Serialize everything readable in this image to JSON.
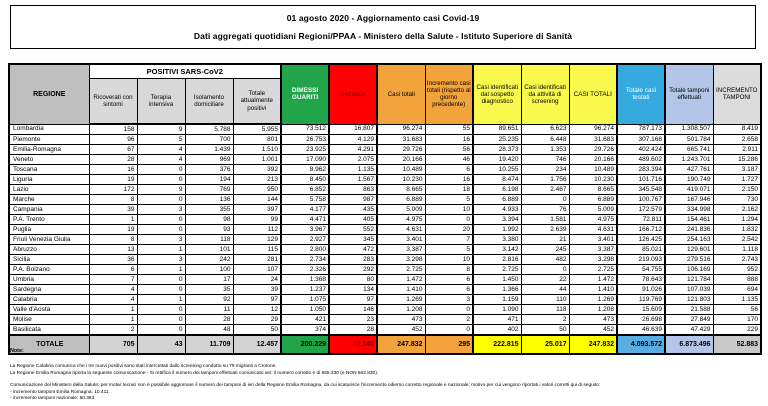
{
  "title": {
    "line1": "01 agosto 2020 - Aggiornamento casi Covid-19",
    "line2": "Dati aggregati quotidiani Regioni/PPAA - Ministero della Salute - Istituto Superiore di Sanità"
  },
  "table": {
    "group_header": "POSITIVI SARS-CoV2",
    "headers": {
      "regione": "REGIONE",
      "ricoverati": "Ricoverati con sintomi",
      "terapia": "Terapia intensiva",
      "isolamento": "Isolamento domiciliare",
      "tot_positivi": "Totale attualmente positivi",
      "dimessi": "DIMESSI GUARITI",
      "deceduti": "Deceduti",
      "casi_totali": "Casi totali",
      "incremento_casi": "Incremento casi totali (rispetto al giorno precedente)",
      "sospetto": "Casi identificati dal sospetto diagnostico",
      "screening": "Casi identificati da attività di screening",
      "casi_totali_caps": "CASI TOTALI",
      "casi_testati": "Totale casi testati",
      "tamponi": "Totale tamponi effettuati",
      "incremento_tamponi": "INCREMENTO TAMPONI"
    },
    "rows": [
      [
        "Lombardia",
        "158",
        "9",
        "5.788",
        "5.955",
        "73.512",
        "16.807",
        "96.274",
        "55",
        "89.651",
        "6.623",
        "96.274",
        "787.173",
        "1.308.507",
        "8.419"
      ],
      [
        "Piemonte",
        "96",
        "5",
        "700",
        "801",
        "26.753",
        "4.129",
        "31.683",
        "16",
        "25.235",
        "6.448",
        "31.683",
        "307.168",
        "501.784",
        "2.658"
      ],
      [
        "Emilia-Romagna",
        "67",
        "4",
        "1.439",
        "1.510",
        "23.925",
        "4.291",
        "29.726",
        "56",
        "28.373",
        "1.353",
        "29.726",
        "402.424",
        "665.741",
        "2.911"
      ],
      [
        "Veneto",
        "28",
        "4",
        "969",
        "1.001",
        "17.090",
        "2.075",
        "20.166",
        "46",
        "19.420",
        "746",
        "20.166",
        "489.602",
        "1.243.701",
        "15.286"
      ],
      [
        "Toscana",
        "16",
        "0",
        "376",
        "392",
        "8.962",
        "1.135",
        "10.489",
        "6",
        "10.255",
        "234",
        "10.489",
        "283.394",
        "427.761",
        "3.187"
      ],
      [
        "Liguria",
        "19",
        "0",
        "194",
        "213",
        "8.450",
        "1.567",
        "10.230",
        "16",
        "8.474",
        "1.756",
        "10.230",
        "101.716",
        "190.749",
        "1.727"
      ],
      [
        "Lazio",
        "172",
        "9",
        "769",
        "950",
        "6.852",
        "863",
        "8.665",
        "18",
        "6.198",
        "2.467",
        "8.665",
        "345.548",
        "419.071",
        "2.150"
      ],
      [
        "Marche",
        "8",
        "0",
        "136",
        "144",
        "5.758",
        "987",
        "6.889",
        "5",
        "6.889",
        "0",
        "6.889",
        "100.767",
        "167.946",
        "730"
      ],
      [
        "Campania",
        "39",
        "3",
        "355",
        "397",
        "4.177",
        "435",
        "5.009",
        "10",
        "4.933",
        "76",
        "5.009",
        "172.579",
        "334.998",
        "2.162"
      ],
      [
        "P.A. Trento",
        "1",
        "0",
        "98",
        "99",
        "4.471",
        "405",
        "4.975",
        "0",
        "3.394",
        "1.581",
        "4.975",
        "72.811",
        "154.461",
        "1.294"
      ],
      [
        "Puglia",
        "19",
        "0",
        "93",
        "112",
        "3.967",
        "552",
        "4.631",
        "20",
        "1.992",
        "2.639",
        "4.631",
        "166.712",
        "241.836",
        "1.832"
      ],
      [
        "Friuli Venezia Giulia",
        "8",
        "3",
        "118",
        "129",
        "2.927",
        "345",
        "3.401",
        "7",
        "3.380",
        "21",
        "3.401",
        "126.425",
        "254.163",
        "2.542"
      ],
      [
        "Abruzzo",
        "13",
        "1",
        "101",
        "115",
        "2.800",
        "472",
        "3.387",
        "5",
        "3.142",
        "245",
        "3.387",
        "85.021",
        "129.601",
        "1.118"
      ],
      [
        "Sicilia",
        "36",
        "3",
        "242",
        "281",
        "2.734",
        "283",
        "3.298",
        "10",
        "2.816",
        "482",
        "3.298",
        "219.093",
        "279.516",
        "2.743"
      ],
      [
        "P.A. Bolzano",
        "6",
        "1",
        "100",
        "107",
        "2.326",
        "292",
        "2.725",
        "8",
        "2.725",
        "0",
        "2.725",
        "54.755",
        "106.169",
        "952"
      ],
      [
        "Umbria",
        "7",
        "0",
        "17",
        "24",
        "1.368",
        "80",
        "1.472",
        "6",
        "1.450",
        "22",
        "1.472",
        "78.643",
        "121.784",
        "888"
      ],
      [
        "Sardegna",
        "4",
        "0",
        "35",
        "39",
        "1.237",
        "134",
        "1.410",
        "6",
        "1.366",
        "44",
        "1.410",
        "91.026",
        "107.039",
        "694"
      ],
      [
        "Calabria",
        "4",
        "1",
        "92",
        "97",
        "1.075",
        "97",
        "1.269",
        "3",
        "1.159",
        "110",
        "1.269",
        "119.769",
        "121.803",
        "1.135"
      ],
      [
        "Valle d'Aosta",
        "1",
        "0",
        "11",
        "12",
        "1.050",
        "146",
        "1.208",
        "0",
        "1.090",
        "118",
        "1.208",
        "15.609",
        "21.588",
        "56"
      ],
      [
        "Molise",
        "1",
        "0",
        "28",
        "29",
        "421",
        "23",
        "473",
        "2",
        "471",
        "2",
        "473",
        "26.698",
        "27.849",
        "170"
      ],
      [
        "Basilicata",
        "2",
        "0",
        "48",
        "50",
        "374",
        "28",
        "452",
        "0",
        "402",
        "50",
        "452",
        "46.639",
        "47.429",
        "229"
      ]
    ],
    "total_row": [
      "TOTALE",
      "705",
      "43",
      "11.709",
      "12.457",
      "200.229",
      "35.146",
      "247.832",
      "295",
      "222.815",
      "25.017",
      "247.832",
      "4.093.572",
      "6.873.496",
      "52.883"
    ]
  },
  "notes": {
    "label": "Note:",
    "lines": [
      "La Regione Calabria comunica che i tre nuovi positivi sono stati intercettati dallo screening condotto su 79 migranti a Crotone.",
      "La Regione Emilia Romagna riporta la seguente comunicazione - Si rettifica il numero dei tamponi effettuati comunicato ieri: il numero corretto è di 655.330 (e NON 662.830)."
    ],
    "ministero": [
      "Comunicazione del Ministero della Salute: per motivi tecnici non è possibile aggiornare il numero dei tamponi di ieri della Regione Emilia Romagna, da cui scaturisce l'incremento odierno corretto regionale e nazionale; motivo per cui vengono riportati i valori corretti qui di seguito:",
      "- incremento tamponi Emilia Romagna: 10.411",
      "- incremento tamponi nazionale: 60.383"
    ]
  },
  "colors": {
    "green": "#22A44B",
    "red": "#FF0000",
    "red_text": "#7F0000",
    "orange": "#F2A33B",
    "yellow_header": "#FAFA4E",
    "yellow_total": "#FFFF00",
    "blue_header": "#36A9DE",
    "blue_total": "#58ADE3",
    "periwinkle": "#B4C6E7",
    "gray_regione": "#BFBFBF",
    "gray_subheader": "#D9D9D9"
  }
}
